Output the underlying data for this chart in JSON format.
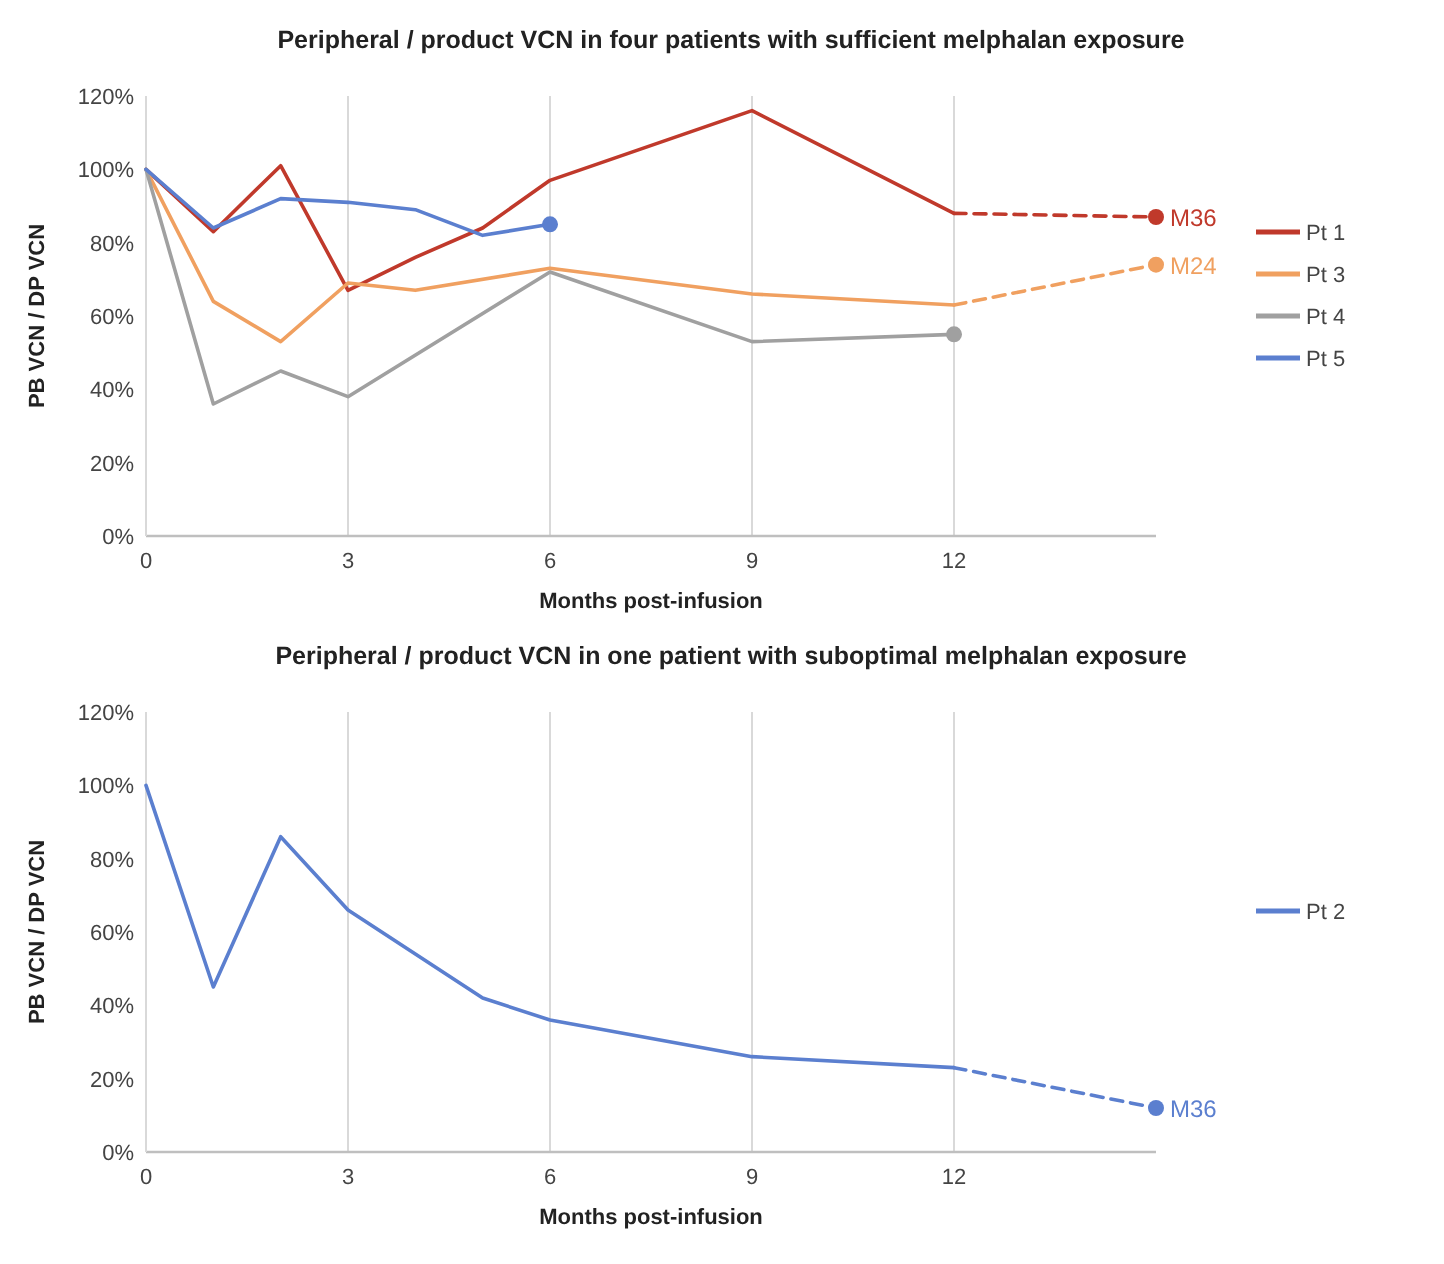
{
  "chart_data": [
    {
      "type": "line",
      "title": "Peripheral / product VCN in four patients with sufficient melphalan exposure",
      "xlabel": "Months post-infusion",
      "ylabel": "PB VCN / DP VCN",
      "xlim": [
        0,
        15
      ],
      "xticks": [
        0,
        3,
        6,
        9,
        12
      ],
      "ylim": [
        0,
        120
      ],
      "yticks": [
        {
          "value": 0,
          "label": "0%"
        },
        {
          "value": 20,
          "label": "20%"
        },
        {
          "value": 40,
          "label": "40%"
        },
        {
          "value": 60,
          "label": "60%"
        },
        {
          "value": 80,
          "label": "80%"
        },
        {
          "value": 100,
          "label": "100%"
        },
        {
          "value": 120,
          "label": "120%"
        }
      ],
      "grid": "x",
      "legend": "right",
      "series": [
        {
          "name": "Pt 1",
          "color": "#c0392b",
          "x": [
            0,
            1,
            2,
            3,
            4,
            5,
            6,
            9,
            12
          ],
          "values": [
            100,
            83,
            101,
            67,
            76,
            84,
            97,
            116,
            88
          ]
        },
        {
          "name": "Pt 3",
          "color": "#f0a060",
          "x": [
            0,
            1,
            2,
            3,
            4,
            6,
            9,
            12
          ],
          "values": [
            100,
            64,
            53,
            69,
            67,
            73,
            66,
            63
          ]
        },
        {
          "name": "Pt 4",
          "color": "#a0a0a0",
          "x": [
            0,
            1,
            2,
            3,
            6,
            9,
            12
          ],
          "values": [
            100,
            36,
            45,
            38,
            72,
            53,
            55
          ]
        },
        {
          "name": "Pt 5",
          "color": "#5b7fcf",
          "x": [
            0,
            1,
            2,
            3,
            4,
            5,
            6
          ],
          "values": [
            100,
            84,
            92,
            91,
            89,
            82,
            85
          ]
        },
        {
          "type": "line",
          "line_style": "dashed",
          "color": "#c0392b",
          "x": [
            12,
            15
          ],
          "values": [
            88,
            87
          ]
        },
        {
          "type": "line",
          "line_style": "dashed",
          "color": "#f0a060",
          "x": [
            12,
            15
          ],
          "values": [
            63,
            74
          ]
        },
        {
          "type": "scatter",
          "color": "#c0392b",
          "x": [
            15
          ],
          "values": [
            87
          ],
          "value_labels": [
            "M36"
          ]
        },
        {
          "type": "scatter",
          "color": "#f0a060",
          "x": [
            15
          ],
          "values": [
            74
          ],
          "value_labels": [
            "M24"
          ]
        },
        {
          "type": "scatter",
          "color": "#a0a0a0",
          "x": [
            12
          ],
          "values": [
            55
          ]
        },
        {
          "type": "scatter",
          "color": "#5b7fcf",
          "x": [
            6
          ],
          "values": [
            85
          ]
        }
      ]
    },
    {
      "type": "line",
      "title": "Peripheral / product VCN in one patient with suboptimal melphalan exposure",
      "xlabel": "Months post-infusion",
      "ylabel": "PB VCN / DP VCN",
      "xlim": [
        0,
        15
      ],
      "xticks": [
        0,
        3,
        6,
        9,
        12
      ],
      "ylim": [
        0,
        120
      ],
      "yticks": [
        {
          "value": 0,
          "label": "0%"
        },
        {
          "value": 20,
          "label": "20%"
        },
        {
          "value": 40,
          "label": "40%"
        },
        {
          "value": 60,
          "label": "60%"
        },
        {
          "value": 80,
          "label": "80%"
        },
        {
          "value": 100,
          "label": "100%"
        },
        {
          "value": 120,
          "label": "120%"
        }
      ],
      "grid": "x",
      "legend": "right",
      "series": [
        {
          "name": "Pt 2",
          "color": "#5b7fcf",
          "x": [
            0,
            1,
            2,
            3,
            5,
            6,
            9,
            12
          ],
          "values": [
            100,
            45,
            86,
            66,
            42,
            36,
            26,
            23
          ]
        },
        {
          "type": "line",
          "line_style": "dashed",
          "color": "#5b7fcf",
          "x": [
            12,
            15
          ],
          "values": [
            23,
            12
          ]
        },
        {
          "type": "scatter",
          "color": "#5b7fcf",
          "x": [
            15
          ],
          "values": [
            12
          ],
          "value_labels": [
            "M36"
          ]
        }
      ]
    }
  ]
}
